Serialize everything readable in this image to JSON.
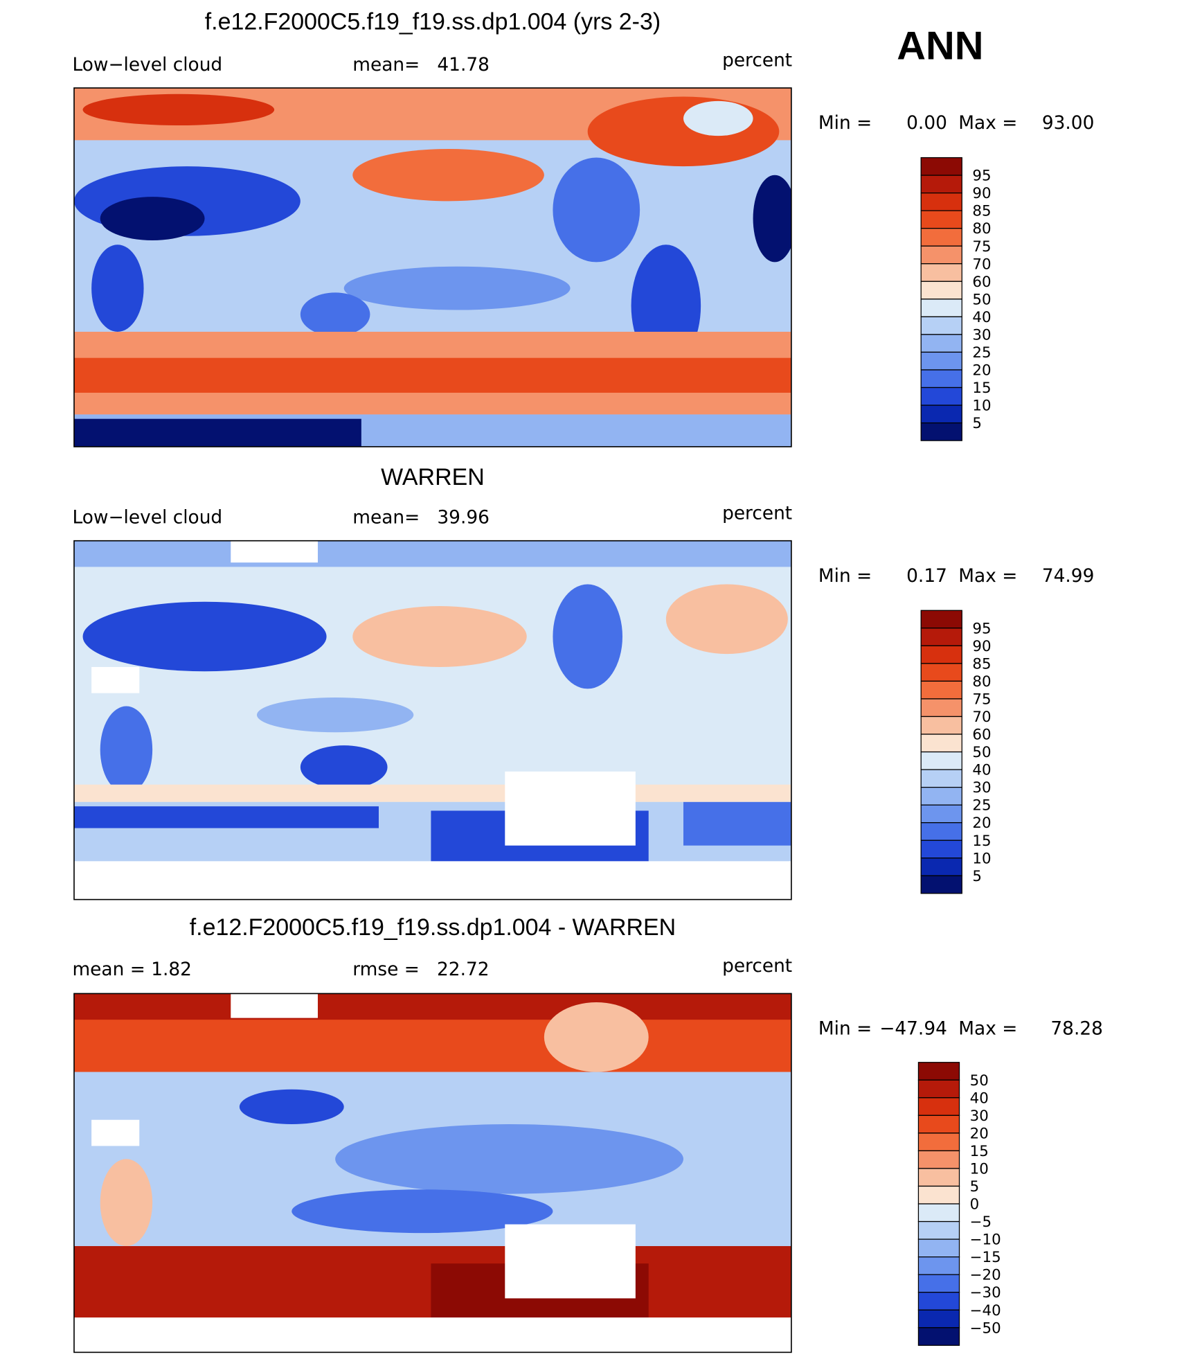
{
  "header": {
    "label": "ANN"
  },
  "panels": [
    {
      "title": "f.e12.F2000C5.f19_f19.ss.dp1.004 (yrs 2-3)",
      "left": "Low−level cloud",
      "center": "mean=   41.78",
      "right": "percent",
      "stats": {
        "min_label": "Min =",
        "min": "0.00",
        "max_label": "Max =",
        "max": "93.00"
      },
      "colorbar": {
        "labels": [
          "95",
          "90",
          "85",
          "80",
          "75",
          "70",
          "60",
          "50",
          "40",
          "30",
          "25",
          "20",
          "15",
          "10",
          "5"
        ],
        "colors": [
          "#8c0a04",
          "#b51a0a",
          "#d7300e",
          "#e84a1c",
          "#f26d3c",
          "#f5926a",
          "#f8bfa0",
          "#fbe3d0",
          "#dbeaf7",
          "#b6d0f5",
          "#92b4f2",
          "#6d95ee",
          "#4670e8",
          "#2348d8",
          "#0a28b0",
          "#031170"
        ]
      }
    },
    {
      "title": "WARREN",
      "left": "Low−level cloud",
      "center": "mean=   39.96",
      "right": "percent",
      "stats": {
        "min_label": "Min =",
        "min": "0.17",
        "max_label": "Max =",
        "max": "74.99"
      },
      "colorbar": {
        "labels": [
          "95",
          "90",
          "85",
          "80",
          "75",
          "70",
          "60",
          "50",
          "40",
          "30",
          "25",
          "20",
          "15",
          "10",
          "5"
        ],
        "colors": [
          "#8c0a04",
          "#b51a0a",
          "#d7300e",
          "#e84a1c",
          "#f26d3c",
          "#f5926a",
          "#f8bfa0",
          "#fbe3d0",
          "#dbeaf7",
          "#b6d0f5",
          "#92b4f2",
          "#6d95ee",
          "#4670e8",
          "#2348d8",
          "#0a28b0",
          "#031170"
        ]
      }
    },
    {
      "title": "f.e12.F2000C5.f19_f19.ss.dp1.004 - WARREN",
      "left": "mean =    1.82",
      "center": "rmse =   22.72",
      "right": "percent",
      "stats": {
        "min_label": "Min =",
        "min": "−47.94",
        "max_label": "Max =",
        "max": "78.28"
      },
      "colorbar": {
        "labels": [
          "50",
          "40",
          "30",
          "20",
          "15",
          "10",
          "5",
          "0",
          "−5",
          "−10",
          "−15",
          "−20",
          "−30",
          "−40",
          "−50"
        ],
        "colors": [
          "#8c0a04",
          "#b51a0a",
          "#d7300e",
          "#e84a1c",
          "#f26d3c",
          "#f5926a",
          "#f8bfa0",
          "#fbe3d0",
          "#dbeaf7",
          "#b6d0f5",
          "#92b4f2",
          "#6d95ee",
          "#4670e8",
          "#2348d8",
          "#0a28b0",
          "#031170"
        ]
      }
    }
  ]
}
